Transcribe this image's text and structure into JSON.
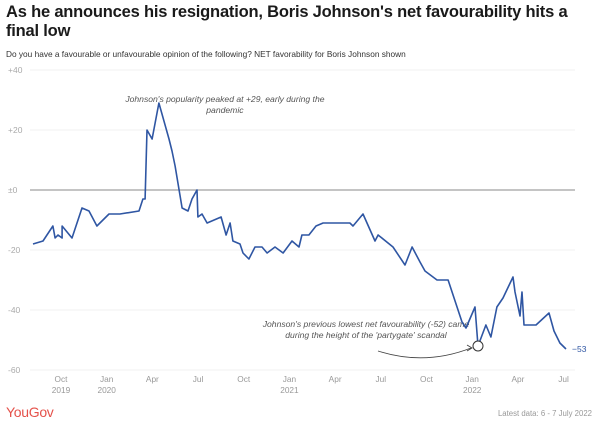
{
  "header": {
    "title": "As he announces his resignation, Boris Johnson's net favourability hits a final low",
    "subtitle": "Do you have a favourable or unfavourable opinion of the following? NET favorability for Boris Johnson shown"
  },
  "footer": {
    "brand": "YouGov",
    "latest": "Latest data: 6 - 7 July 2022"
  },
  "colors": {
    "line": "#2f56a3",
    "brand": "#e5524b",
    "zero_line": "#888888",
    "grid": "#eeeeee"
  },
  "chart_data": {
    "type": "line",
    "title": "As he announces his resignation, Boris Johnson's net favourability hits a final low",
    "xlabel": "",
    "ylabel": "",
    "ylim": [
      -60,
      40
    ],
    "yticks": [
      40,
      20,
      0,
      -20,
      -40,
      -60
    ],
    "ytick_labels": [
      "+40",
      "+20",
      "±0",
      "-20",
      "-40",
      "-60"
    ],
    "x_unit": "months since Oct 2019",
    "xlim": [
      -1.8,
      33.5
    ],
    "xticks": [
      {
        "pos": 0,
        "line1": "Oct",
        "line2": "2019"
      },
      {
        "pos": 3,
        "line1": "Jan",
        "line2": "2020"
      },
      {
        "pos": 6,
        "line1": "Apr",
        "line2": ""
      },
      {
        "pos": 9,
        "line1": "Jul",
        "line2": ""
      },
      {
        "pos": 12,
        "line1": "Oct",
        "line2": ""
      },
      {
        "pos": 15,
        "line1": "Jan",
        "line2": "2021"
      },
      {
        "pos": 18,
        "line1": "Apr",
        "line2": ""
      },
      {
        "pos": 21,
        "line1": "Jul",
        "line2": ""
      },
      {
        "pos": 24,
        "line1": "Oct",
        "line2": ""
      },
      {
        "pos": 27,
        "line1": "Jan",
        "line2": "2022"
      },
      {
        "pos": 30,
        "line1": "Apr",
        "line2": ""
      },
      {
        "pos": 33,
        "line1": "Jul",
        "line2": ""
      }
    ],
    "grid": true,
    "series": [
      {
        "name": "Boris Johnson net favourability",
        "points": [
          [
            -1.84,
            -18
          ],
          [
            -1.18,
            -17
          ],
          [
            -0.53,
            -12
          ],
          [
            -0.39,
            -16
          ],
          [
            -0.2,
            -15
          ],
          [
            0.07,
            -16
          ],
          [
            0.07,
            -12
          ],
          [
            0.72,
            -16
          ],
          [
            1.38,
            -6
          ],
          [
            1.84,
            -7
          ],
          [
            2.36,
            -12
          ],
          [
            3.15,
            -8
          ],
          [
            3.87,
            -8
          ],
          [
            5.12,
            -7
          ],
          [
            5.38,
            -3
          ],
          [
            5.52,
            -3
          ],
          [
            5.65,
            20
          ],
          [
            5.98,
            17
          ],
          [
            6.43,
            29
          ],
          [
            7.09,
            17
          ],
          [
            7.29,
            13
          ],
          [
            7.49,
            8
          ],
          [
            7.95,
            -6
          ],
          [
            8.34,
            -7
          ],
          [
            8.6,
            -3
          ],
          [
            8.93,
            0
          ],
          [
            8.99,
            -9
          ],
          [
            9.26,
            -8
          ],
          [
            9.59,
            -11
          ],
          [
            10.51,
            -9
          ],
          [
            10.84,
            -15
          ],
          [
            11.1,
            -11
          ],
          [
            11.29,
            -17
          ],
          [
            11.75,
            -18
          ],
          [
            11.95,
            -21
          ],
          [
            12.34,
            -23
          ],
          [
            12.74,
            -19
          ],
          [
            13.2,
            -19
          ],
          [
            13.53,
            -21
          ],
          [
            14.05,
            -19
          ],
          [
            14.58,
            -21
          ],
          [
            15.17,
            -17
          ],
          [
            15.63,
            -19
          ],
          [
            15.82,
            -15
          ],
          [
            16.28,
            -15
          ],
          [
            16.74,
            -12
          ],
          [
            17.21,
            -11
          ],
          [
            18.97,
            -11
          ],
          [
            19.17,
            -12
          ],
          [
            19.83,
            -8
          ],
          [
            20.62,
            -17
          ],
          [
            20.82,
            -15
          ],
          [
            21.8,
            -19
          ],
          [
            22.59,
            -25
          ],
          [
            23.05,
            -19
          ],
          [
            23.57,
            -24
          ],
          [
            23.9,
            -27
          ],
          [
            24.69,
            -30
          ],
          [
            25.42,
            -30
          ],
          [
            26.33,
            -44
          ],
          [
            26.59,
            -46
          ],
          [
            27.18,
            -39
          ],
          [
            27.38,
            -52
          ],
          [
            27.9,
            -45
          ],
          [
            28.23,
            -49
          ],
          [
            28.62,
            -39
          ],
          [
            29.02,
            -36
          ],
          [
            29.68,
            -29
          ],
          [
            29.81,
            -34
          ],
          [
            30.14,
            -42
          ],
          [
            30.27,
            -34
          ],
          [
            30.4,
            -45
          ],
          [
            31.19,
            -45
          ],
          [
            32.04,
            -41
          ],
          [
            32.37,
            -47
          ],
          [
            32.76,
            -51
          ],
          [
            33.16,
            -53
          ]
        ],
        "end_label": "−53"
      }
    ],
    "annotations": [
      {
        "text_lines": [
          "Johnson's popularity peaked at +29, early during the",
          "pandemic"
        ],
        "target": [
          6.43,
          29
        ]
      },
      {
        "text_lines": [
          "Johnson's previous lowest net favourability (-52) came",
          "during the height of the 'partygate' scandal"
        ],
        "target": [
          27.38,
          -52
        ],
        "marker": "circle",
        "arrow": true
      }
    ]
  }
}
